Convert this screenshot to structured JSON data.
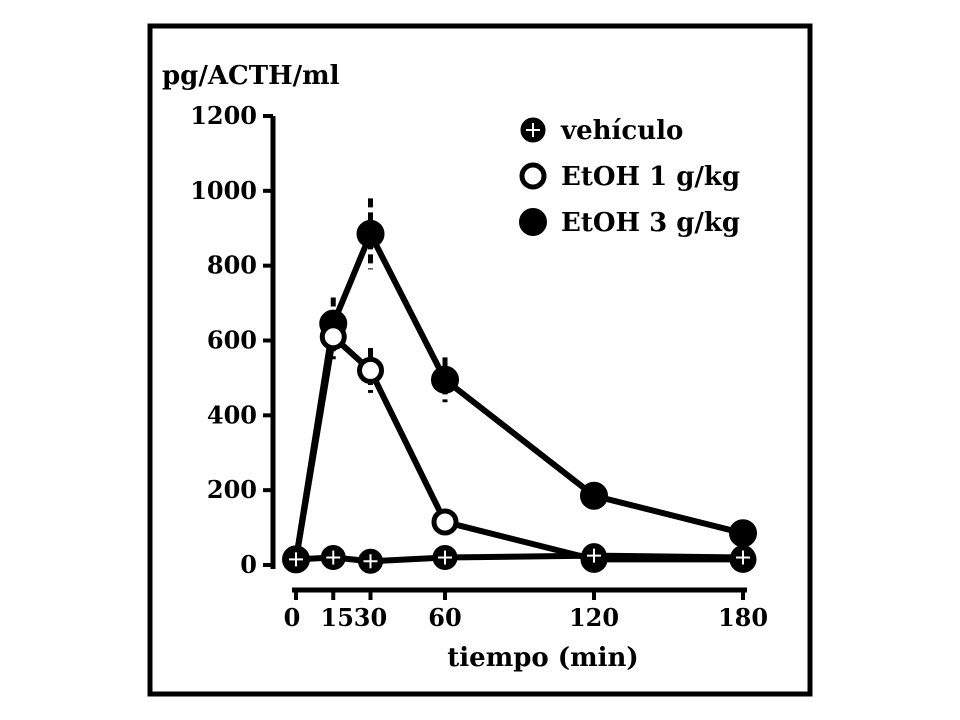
{
  "chart_data": {
    "type": "line",
    "title": "",
    "ylabel": "pg/ACTH/ml",
    "xlabel": "tiempo (min)",
    "x": [
      0,
      15,
      30,
      60,
      120,
      180
    ],
    "xticks": [
      0,
      15,
      30,
      60,
      120,
      180
    ],
    "xtick_labels": [
      "0",
      "15",
      "30",
      "60",
      "120",
      "180"
    ],
    "xlim": [
      0,
      180
    ],
    "yticks": [
      0,
      200,
      400,
      600,
      800,
      1000,
      1200
    ],
    "ytick_labels": [
      "0",
      "200",
      "400",
      "600",
      "800",
      "1000",
      "1200"
    ],
    "ylim": [
      0,
      1200
    ],
    "grid": false,
    "legend_position": "top-right",
    "series": [
      {
        "name": "vehículo",
        "marker": "crossed-circle",
        "x": [
          0,
          15,
          30,
          60,
          120,
          180
        ],
        "values": [
          15,
          20,
          10,
          20,
          25,
          20
        ],
        "error": [
          0,
          0,
          0,
          0,
          0,
          0
        ]
      },
      {
        "name": "EtOH 1 g/kg",
        "marker": "open-circle",
        "x": [
          0,
          15,
          30,
          60,
          120,
          180
        ],
        "values": [
          15,
          610,
          520,
          115,
          15,
          15
        ],
        "error": [
          0,
          60,
          60,
          0,
          0,
          0
        ]
      },
      {
        "name": "EtOH 3 g/kg",
        "marker": "filled-circle",
        "x": [
          0,
          15,
          30,
          60,
          120,
          180
        ],
        "values": [
          15,
          645,
          885,
          495,
          185,
          85
        ],
        "error": [
          0,
          70,
          95,
          60,
          0,
          0
        ]
      }
    ]
  }
}
